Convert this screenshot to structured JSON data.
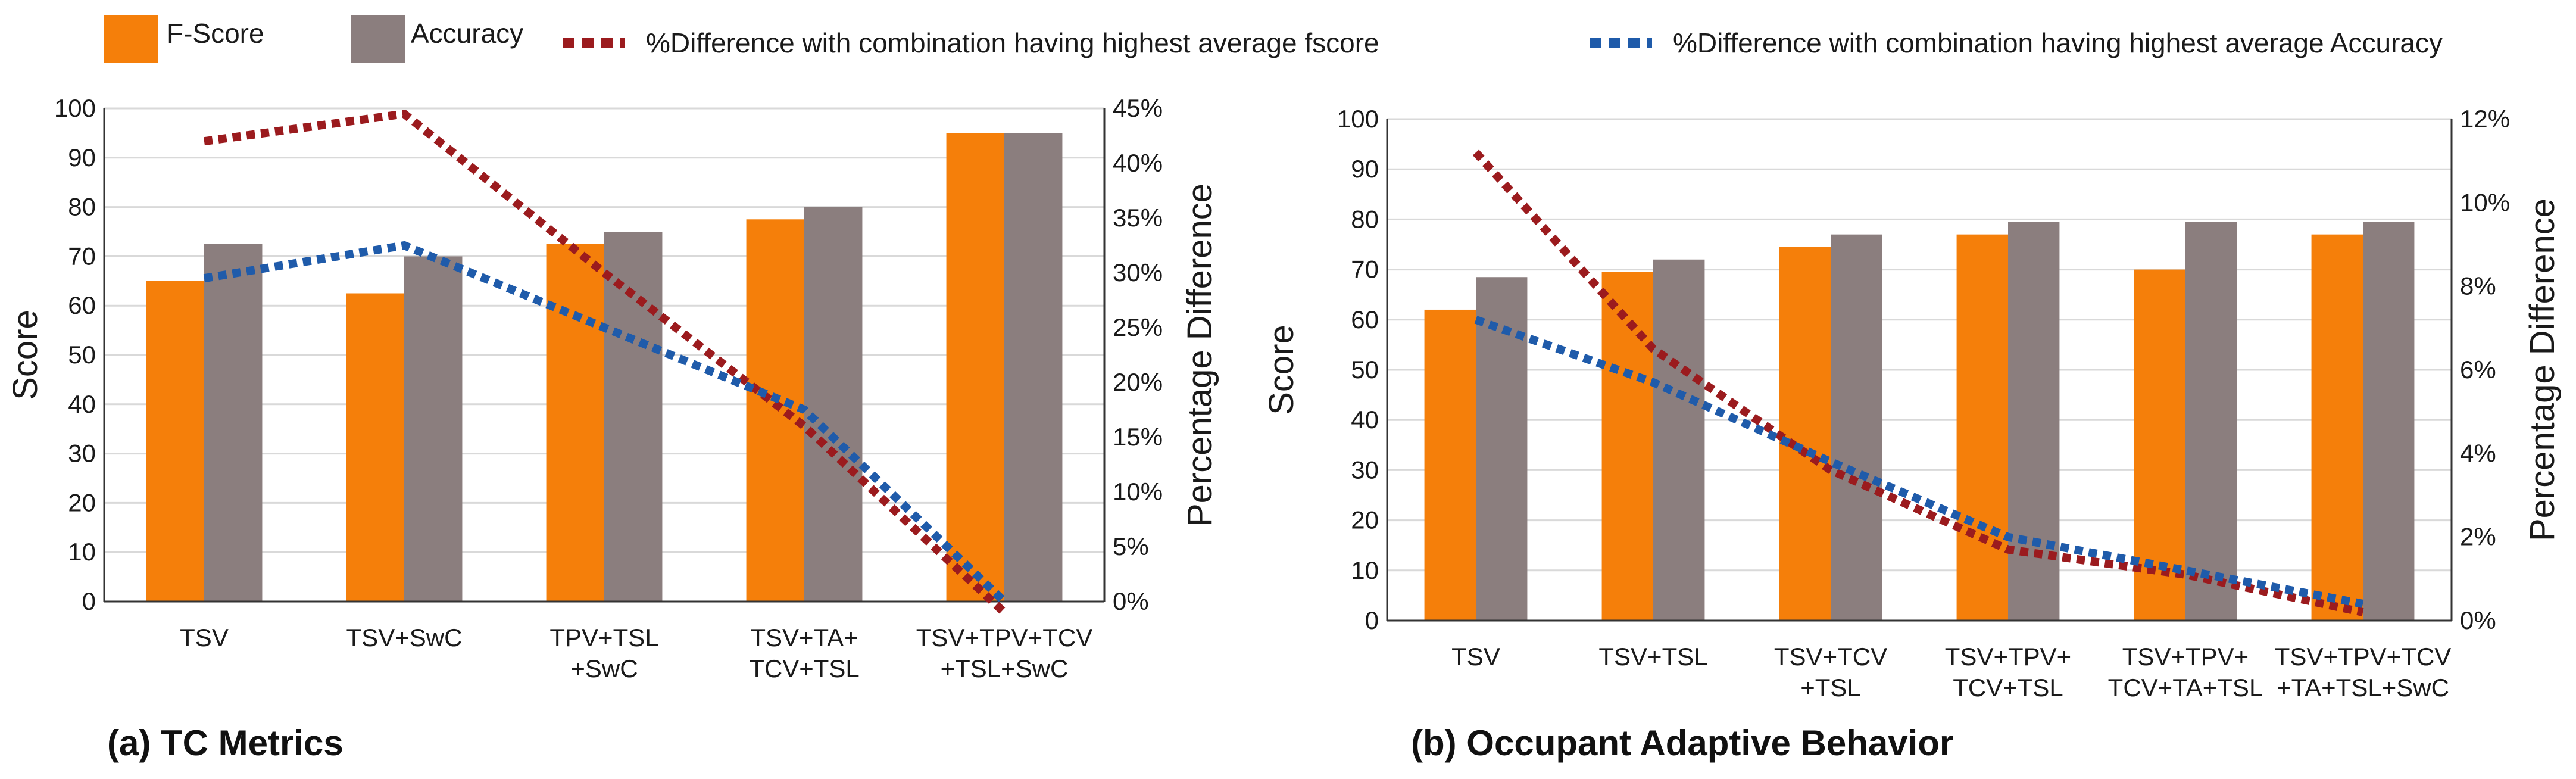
{
  "legend": {
    "fscore": "F-Score",
    "accuracy": "Accuracy",
    "diff_fscore": "%Difference with combination having highest average fscore",
    "diff_accuracy": "%Difference with combination having highest average Accuracy"
  },
  "colors": {
    "fscore": "#F57F0A",
    "accuracy": "#8B7E7E",
    "diff_fscore": "#9B1B1E",
    "diff_accuracy": "#1F5BAA",
    "grid": "#D9D9D9",
    "axis": "#333333"
  },
  "chart_data": [
    {
      "type": "bar",
      "caption": "(a) TC Metrics",
      "ylabel": "Score",
      "y2label": "Percentage Difference",
      "ylim": [
        0,
        100
      ],
      "y2lim": [
        0,
        45
      ],
      "yticks": [
        "0",
        "10",
        "20",
        "30",
        "40",
        "50",
        "60",
        "70",
        "80",
        "90",
        "100"
      ],
      "y2ticks": [
        "0%",
        "5%",
        "10%",
        "15%",
        "20%",
        "25%",
        "30%",
        "35%",
        "40%",
        "45%"
      ],
      "categories": [
        [
          "TSV"
        ],
        [
          "TSV+SwC"
        ],
        [
          "TPV+TSL",
          "+SwC"
        ],
        [
          "TSV+TA+",
          "TCV+TSL"
        ],
        [
          "TSV+TPV+TCV",
          "+TSL+SwC"
        ]
      ],
      "series": [
        {
          "name": "F-Score",
          "axis": "left",
          "kind": "bar",
          "values": [
            65,
            62.5,
            72.5,
            77.5,
            95
          ]
        },
        {
          "name": "Accuracy",
          "axis": "left",
          "kind": "bar",
          "values": [
            72.5,
            70,
            75,
            80,
            95
          ]
        },
        {
          "name": "%Difference with combination having highest average fscore",
          "axis": "right",
          "kind": "line",
          "values": [
            42,
            44.5,
            30,
            16,
            -1
          ]
        },
        {
          "name": "%Difference with combination having highest average Accuracy",
          "axis": "right",
          "kind": "line",
          "values": [
            29.5,
            32.5,
            25,
            17.5,
            0
          ]
        }
      ]
    },
    {
      "type": "bar",
      "caption": "(b) Occupant Adaptive Behavior",
      "ylabel": "Score",
      "y2label": "Percentage Difference",
      "ylim": [
        0,
        100
      ],
      "y2lim": [
        0,
        12
      ],
      "yticks": [
        "0",
        "10",
        "20",
        "30",
        "40",
        "50",
        "60",
        "70",
        "80",
        "90",
        "100"
      ],
      "y2ticks": [
        "0%",
        "2%",
        "4%",
        "6%",
        "8%",
        "10%",
        "12%"
      ],
      "categories": [
        [
          "TSV"
        ],
        [
          "TSV+TSL"
        ],
        [
          "TSV+TCV",
          "+TSL"
        ],
        [
          "TSV+TPV+",
          "TCV+TSL"
        ],
        [
          "TSV+TPV+",
          "TCV+TA+TSL"
        ],
        [
          "TSV+TPV+TCV",
          "+TA+TSL+SwC"
        ]
      ],
      "series": [
        {
          "name": "F-Score",
          "axis": "left",
          "kind": "bar",
          "values": [
            62,
            69.5,
            74.5,
            77,
            70,
            77
          ]
        },
        {
          "name": "Accuracy",
          "axis": "left",
          "kind": "bar",
          "values": [
            68.5,
            72,
            77,
            79.5,
            79.5,
            79.5
          ]
        },
        {
          "name": "%Difference with combination having highest average fscore",
          "axis": "right",
          "kind": "line",
          "values": [
            11.2,
            6.5,
            3.6,
            1.7,
            1.1,
            0.2
          ]
        },
        {
          "name": "%Difference with combination having highest average Accuracy",
          "axis": "right",
          "kind": "line",
          "values": [
            7.2,
            5.7,
            3.8,
            2.0,
            1.2,
            0.4
          ]
        }
      ]
    }
  ]
}
